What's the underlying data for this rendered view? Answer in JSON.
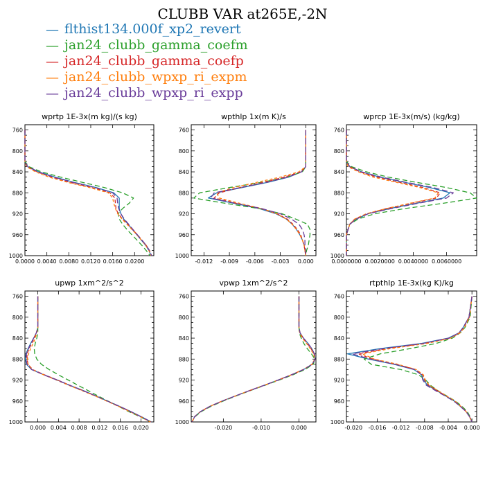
{
  "title": "CLUBB VAR at265E,-2N",
  "legend": [
    {
      "name": "flthist134.000f_xp2_revert",
      "color": "#1f77b4"
    },
    {
      "name": "jan24_clubb_gamma_coefm",
      "color": "#2ca02c"
    },
    {
      "name": "jan24_clubb_gamma_coefp",
      "color": "#d62728"
    },
    {
      "name": "jan24_clubb_wpxp_ri_expm",
      "color": "#ff7f0e"
    },
    {
      "name": "jan24_clubb_wpxp_ri_expp",
      "color": "#6a3d9a"
    }
  ],
  "chart_data": [
    {
      "type": "line",
      "title": "wprtp  1E-3x(m kg)/(s kg)",
      "xlim": [
        0,
        0.0235
      ],
      "ylim": [
        750,
        1000
      ],
      "xticks": [
        0,
        0.004,
        0.008,
        0.012,
        0.016,
        0.02
      ],
      "xticklabels": [
        "0.0000",
        "0.0040",
        "0.0080",
        "0.0120",
        "0.0160",
        "0.0200"
      ],
      "yticks": [
        760,
        800,
        840,
        880,
        920,
        960,
        1000
      ],
      "y": [
        760,
        800,
        820,
        830,
        840,
        850,
        860,
        870,
        880,
        890,
        900,
        910,
        920,
        930,
        940,
        950,
        960,
        970,
        980,
        990,
        1000
      ],
      "series": [
        {
          "values": [
            0,
            0,
            0,
            0.0005,
            0.0025,
            0.0055,
            0.009,
            0.013,
            0.0162,
            0.0172,
            0.0172,
            0.0172,
            0.0175,
            0.018,
            0.0188,
            0.0196,
            0.0204,
            0.0212,
            0.022,
            0.0226,
            0.023
          ]
        },
        {
          "values": [
            0,
            0,
            0,
            0.0007,
            0.003,
            0.0065,
            0.0105,
            0.0145,
            0.0178,
            0.0198,
            0.019,
            0.0178,
            0.017,
            0.0172,
            0.0178,
            0.0186,
            0.0195,
            0.0204,
            0.0213,
            0.0221,
            0.0228
          ]
        },
        {
          "values": [
            0,
            0,
            0,
            0.0004,
            0.0022,
            0.0048,
            0.0082,
            0.0122,
            0.0155,
            0.0164,
            0.0165,
            0.0166,
            0.017,
            0.0178,
            0.0187,
            0.0196,
            0.0205,
            0.0213,
            0.0221,
            0.0227,
            0.0231
          ]
        },
        {
          "values": [
            0,
            0,
            0,
            0.0003,
            0.0019,
            0.0044,
            0.0078,
            0.0118,
            0.0152,
            0.016,
            0.0162,
            0.0165,
            0.0169,
            0.0177,
            0.0186,
            0.0195,
            0.0204,
            0.0212,
            0.022,
            0.0226,
            0.023
          ]
        },
        {
          "values": [
            0,
            0,
            0,
            0.0005,
            0.0024,
            0.0052,
            0.0088,
            0.0128,
            0.016,
            0.0168,
            0.0169,
            0.0171,
            0.0175,
            0.0181,
            0.0189,
            0.0197,
            0.0205,
            0.0213,
            0.0221,
            0.0227,
            0.0231
          ]
        }
      ]
    },
    {
      "type": "line",
      "title": "wpthlp  1x(m K)/s",
      "xlim": [
        -0.0135,
        0.0012
      ],
      "ylim": [
        750,
        1000
      ],
      "xticks": [
        -0.012,
        -0.009,
        -0.006,
        -0.003,
        0
      ],
      "xticklabels": [
        "-0.012",
        "-0.009",
        "-0.006",
        "-0.003",
        "0.000"
      ],
      "yticks": [
        760,
        800,
        840,
        880,
        920,
        960,
        1000
      ],
      "y": [
        760,
        800,
        820,
        830,
        840,
        850,
        860,
        870,
        880,
        890,
        900,
        910,
        920,
        930,
        940,
        950,
        960,
        970,
        980,
        990,
        1000
      ],
      "series": [
        {
          "values": [
            0,
            0,
            0,
            0,
            -0.0005,
            -0.002,
            -0.0045,
            -0.0075,
            -0.0105,
            -0.0115,
            -0.0085,
            -0.0055,
            -0.0035,
            -0.0023,
            -0.0016,
            -0.0011,
            -0.0007,
            -0.0004,
            -0.0002,
            -0.0001,
            0
          ]
        },
        {
          "values": [
            0,
            0,
            0,
            0,
            -0.0004,
            -0.0022,
            -0.0052,
            -0.009,
            -0.0125,
            -0.0132,
            -0.0095,
            -0.0055,
            -0.0028,
            -0.0012,
            0.0002,
            0.0005,
            0.0005,
            0.0004,
            0.0003,
            0.0001,
            0
          ]
        },
        {
          "values": [
            0,
            0,
            0,
            0,
            -0.0006,
            -0.0025,
            -0.005,
            -0.0078,
            -0.0102,
            -0.0108,
            -0.0082,
            -0.0053,
            -0.0034,
            -0.0022,
            -0.0015,
            -0.001,
            -0.0006,
            -0.0004,
            -0.0002,
            -0.0001,
            0
          ]
        },
        {
          "values": [
            0,
            0,
            0,
            0,
            -0.0008,
            -0.003,
            -0.0058,
            -0.0085,
            -0.0105,
            -0.0102,
            -0.0078,
            -0.0052,
            -0.0034,
            -0.0023,
            -0.0016,
            -0.0011,
            -0.0007,
            -0.0004,
            -0.0002,
            -0.0001,
            0
          ]
        },
        {
          "values": [
            0,
            0,
            0,
            0,
            -0.0005,
            -0.0021,
            -0.0046,
            -0.0077,
            -0.0108,
            -0.0112,
            -0.0083,
            -0.0052,
            -0.003,
            -0.0017,
            -0.0008,
            -0.0004,
            -0.0002,
            -0.0001,
            -0.0001,
            0,
            0
          ]
        }
      ]
    },
    {
      "type": "line",
      "title": "wprcp  1E-3x(m/s) (kg/kg)",
      "xlim": [
        0,
        0.0078
      ],
      "ylim": [
        750,
        1000
      ],
      "xticks": [
        0,
        0.002,
        0.004,
        0.006
      ],
      "xticklabels": [
        "0.0000000",
        "0.0020000",
        "0.0040000",
        "0.0060000"
      ],
      "yticks": [
        760,
        800,
        840,
        880,
        920,
        960,
        1000
      ],
      "y": [
        760,
        800,
        820,
        830,
        840,
        850,
        860,
        870,
        880,
        890,
        900,
        910,
        920,
        930,
        940,
        950,
        960,
        970,
        980,
        990,
        1000
      ],
      "series": [
        {
          "values": [
            0,
            0,
            0,
            0.0002,
            0.0009,
            0.002,
            0.0035,
            0.005,
            0.0062,
            0.0058,
            0.0042,
            0.0026,
            0.0013,
            0.0006,
            0.0002,
            0.0001,
            0,
            0,
            0,
            0,
            0
          ]
        },
        {
          "values": [
            0,
            0,
            0,
            0.0003,
            0.0012,
            0.0025,
            0.0042,
            0.006,
            0.0074,
            0.0078,
            0.0058,
            0.0035,
            0.0017,
            0.0007,
            0.0002,
            0.0001,
            0,
            0,
            0,
            0,
            0
          ]
        },
        {
          "values": [
            0,
            0,
            0,
            0.0002,
            0.0008,
            0.0018,
            0.0032,
            0.0046,
            0.0056,
            0.0054,
            0.0039,
            0.0024,
            0.0012,
            0.0005,
            0.0002,
            0.0001,
            0,
            0,
            0,
            0,
            0
          ]
        },
        {
          "values": [
            0,
            0,
            0,
            0.0001,
            0.0007,
            0.0016,
            0.003,
            0.0044,
            0.0055,
            0.0053,
            0.0038,
            0.0024,
            0.0012,
            0.0005,
            0.0002,
            0.0001,
            0,
            0,
            0,
            0,
            0
          ]
        },
        {
          "values": [
            0,
            0,
            0,
            0.0002,
            0.0009,
            0.0021,
            0.0036,
            0.0052,
            0.0064,
            0.006,
            0.0043,
            0.0027,
            0.0013,
            0.0006,
            0.0002,
            0.0001,
            0,
            0,
            0,
            0,
            0
          ]
        }
      ]
    },
    {
      "type": "line",
      "title": "upwp  1xm^2/s^2",
      "xlim": [
        -0.0025,
        0.0225
      ],
      "ylim": [
        750,
        1000
      ],
      "xticks": [
        0,
        0.004,
        0.008,
        0.012,
        0.016,
        0.02
      ],
      "xticklabels": [
        "0.000",
        "0.004",
        "0.008",
        "0.012",
        "0.016",
        "0.020"
      ],
      "yticks": [
        760,
        800,
        840,
        880,
        920,
        960,
        1000
      ],
      "y": [
        760,
        800,
        820,
        830,
        840,
        850,
        860,
        870,
        880,
        890,
        900,
        910,
        920,
        930,
        940,
        950,
        960,
        970,
        980,
        990,
        1000
      ],
      "series": [
        {
          "values": [
            0,
            0,
            0,
            -0.0003,
            -0.0008,
            -0.0014,
            -0.0019,
            -0.0023,
            -0.0024,
            -0.0022,
            -0.0012,
            0.0012,
            0.0038,
            0.0062,
            0.0088,
            0.0112,
            0.0135,
            0.0158,
            0.018,
            0.0201,
            0.022
          ]
        },
        {
          "values": [
            0,
            0,
            0,
            0,
            -0.0002,
            -0.0005,
            -0.0007,
            -0.0006,
            -0.0002,
            0.0007,
            0.0022,
            0.004,
            0.0059,
            0.0078,
            0.0097,
            0.0116,
            0.0136,
            0.0156,
            0.0176,
            0.0198,
            0.0219
          ]
        },
        {
          "values": [
            0,
            0,
            0,
            -0.0003,
            -0.0007,
            -0.0012,
            -0.0017,
            -0.0021,
            -0.0021,
            -0.0019,
            -0.001,
            0.0013,
            0.0038,
            0.0062,
            0.0087,
            0.0111,
            0.0134,
            0.0157,
            0.0179,
            0.02,
            0.0219
          ]
        },
        {
          "values": [
            0,
            0,
            0,
            -0.0002,
            -0.0005,
            -0.0009,
            -0.0014,
            -0.0018,
            -0.002,
            -0.0019,
            -0.0011,
            0.0011,
            0.0036,
            0.006,
            0.0085,
            0.011,
            0.0133,
            0.0156,
            0.0178,
            0.0199,
            0.0218
          ]
        },
        {
          "values": [
            0,
            0,
            0,
            -0.0003,
            -0.0008,
            -0.0013,
            -0.0018,
            -0.0022,
            -0.0023,
            -0.0021,
            -0.0012,
            0.0012,
            0.0037,
            0.0062,
            0.0087,
            0.0112,
            0.0135,
            0.0158,
            0.018,
            0.02,
            0.022
          ]
        }
      ]
    },
    {
      "type": "line",
      "title": "vpwp  1xm^2/s^2",
      "xlim": [
        -0.0285,
        0.0045
      ],
      "ylim": [
        750,
        1000
      ],
      "xticks": [
        -0.02,
        -0.01,
        0
      ],
      "xticklabels": [
        "-0.020",
        "-0.010",
        "0.000"
      ],
      "yticks": [
        760,
        800,
        840,
        880,
        920,
        960,
        1000
      ],
      "y": [
        760,
        800,
        820,
        830,
        840,
        850,
        860,
        870,
        880,
        890,
        900,
        910,
        920,
        930,
        940,
        950,
        960,
        970,
        980,
        990,
        1000
      ],
      "series": [
        {
          "values": [
            0,
            0,
            0,
            0.0003,
            0.0012,
            0.0024,
            0.0034,
            0.0041,
            0.0043,
            0.0035,
            0.0012,
            -0.002,
            -0.0055,
            -0.0092,
            -0.013,
            -0.0167,
            -0.0203,
            -0.0235,
            -0.026,
            -0.0276,
            -0.0283
          ]
        },
        {
          "values": [
            0,
            0,
            0,
            0.0001,
            0.0006,
            0.0013,
            0.0022,
            0.0033,
            0.0042,
            0.0038,
            0.0016,
            -0.0016,
            -0.0052,
            -0.009,
            -0.0128,
            -0.0165,
            -0.02,
            -0.0232,
            -0.0258,
            -0.0275,
            -0.0283
          ]
        },
        {
          "values": [
            0,
            0,
            0,
            0.0003,
            0.0011,
            0.0022,
            0.0032,
            0.004,
            0.0043,
            0.0035,
            0.0012,
            -0.002,
            -0.0055,
            -0.0092,
            -0.013,
            -0.0167,
            -0.0203,
            -0.0235,
            -0.026,
            -0.0276,
            -0.0283
          ]
        },
        {
          "values": [
            0,
            0,
            0,
            0.0002,
            0.0009,
            0.002,
            0.003,
            0.0038,
            0.0042,
            0.0034,
            0.0011,
            -0.002,
            -0.0055,
            -0.0092,
            -0.013,
            -0.0167,
            -0.0203,
            -0.0235,
            -0.026,
            -0.0276,
            -0.0283
          ]
        },
        {
          "values": [
            0,
            0,
            0,
            0.0003,
            0.0012,
            0.0024,
            0.0034,
            0.0041,
            0.0043,
            0.0035,
            0.0012,
            -0.002,
            -0.0055,
            -0.0092,
            -0.013,
            -0.0167,
            -0.0203,
            -0.0235,
            -0.026,
            -0.0276,
            -0.0283
          ]
        }
      ]
    },
    {
      "type": "line",
      "title": "rtpthlp  1E-3x(kg K)/kg",
      "xlim": [
        -0.0212,
        0.0008
      ],
      "ylim": [
        750,
        1000
      ],
      "xticks": [
        -0.02,
        -0.016,
        -0.012,
        -0.008,
        -0.004,
        0
      ],
      "xticklabels": [
        "-0.020",
        "-0.016",
        "-0.012",
        "-0.008",
        "-0.004",
        "0.000"
      ],
      "yticks": [
        760,
        800,
        840,
        880,
        920,
        960,
        1000
      ],
      "y": [
        760,
        800,
        820,
        830,
        840,
        850,
        860,
        870,
        880,
        890,
        900,
        910,
        920,
        930,
        940,
        950,
        960,
        970,
        980,
        990,
        1000
      ],
      "series": [
        {
          "values": [
            0,
            -0.0005,
            -0.0015,
            -0.0022,
            -0.004,
            -0.0085,
            -0.0155,
            -0.021,
            -0.0175,
            -0.0132,
            -0.0098,
            -0.0085,
            -0.0082,
            -0.0075,
            -0.006,
            -0.0045,
            -0.003,
            -0.002,
            -0.001,
            -0.0004,
            0
          ]
        },
        {
          "values": [
            0,
            -0.0003,
            -0.0012,
            -0.002,
            -0.0033,
            -0.006,
            -0.0105,
            -0.0155,
            -0.0182,
            -0.017,
            -0.012,
            -0.009,
            -0.0078,
            -0.007,
            -0.0058,
            -0.0043,
            -0.0028,
            -0.0017,
            -0.0008,
            -0.0003,
            0
          ]
        },
        {
          "values": [
            0,
            -0.0005,
            -0.0014,
            -0.0021,
            -0.0038,
            -0.008,
            -0.0145,
            -0.0192,
            -0.0168,
            -0.0128,
            -0.0095,
            -0.0083,
            -0.008,
            -0.0073,
            -0.0059,
            -0.0044,
            -0.0029,
            -0.0019,
            -0.001,
            -0.0004,
            0
          ]
        },
        {
          "values": [
            0,
            -0.0004,
            -0.0013,
            -0.002,
            -0.0036,
            -0.0075,
            -0.0138,
            -0.0185,
            -0.0165,
            -0.0125,
            -0.0094,
            -0.0082,
            -0.0079,
            -0.0072,
            -0.0058,
            -0.0044,
            -0.0029,
            -0.0019,
            -0.001,
            -0.0004,
            0
          ]
        },
        {
          "values": [
            0,
            -0.0005,
            -0.0015,
            -0.0022,
            -0.0039,
            -0.0082,
            -0.015,
            -0.0202,
            -0.0172,
            -0.013,
            -0.0097,
            -0.0085,
            -0.0083,
            -0.0077,
            -0.0062,
            -0.0046,
            -0.0031,
            -0.002,
            -0.001,
            -0.0004,
            0
          ]
        }
      ]
    }
  ]
}
